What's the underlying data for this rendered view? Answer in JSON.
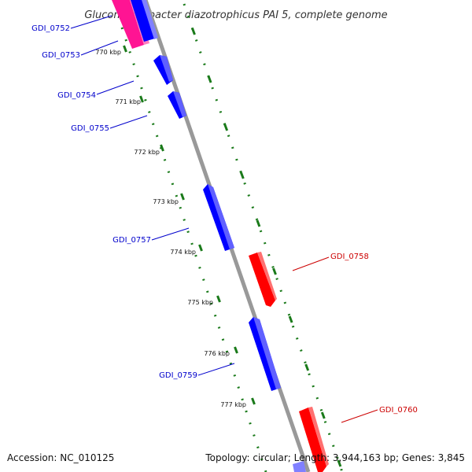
{
  "title": "Gluconacetobacter diazotrophicus PAI 5, complete genome",
  "footer": {
    "accession": "Accession: NC_010125",
    "topology": "Topology: circular; Length: 3,944,163 bp; Genes: 3,845"
  },
  "tick_labels": [
    "770 kbp",
    "771 kbp",
    "772 kbp",
    "773 kbp",
    "774 kbp",
    "775 kbp",
    "776 kbp",
    "777 kbp"
  ],
  "genes": {
    "forward": [
      "GDI_0752",
      "GDI_0753",
      "GDI_0754",
      "GDI_0755",
      "GDI_0757",
      "GDI_0759"
    ],
    "reverse": [
      "GDI_0758",
      "GDI_0760"
    ]
  },
  "colors": {
    "forward_gene": "#0000ff",
    "reverse_gene": "#ff0000",
    "highlight_gene": "#ff1493",
    "backbone": "#888888",
    "ticks": "#1a7a1a",
    "forward_label": "#0000cc",
    "reverse_label": "#cc0000"
  }
}
